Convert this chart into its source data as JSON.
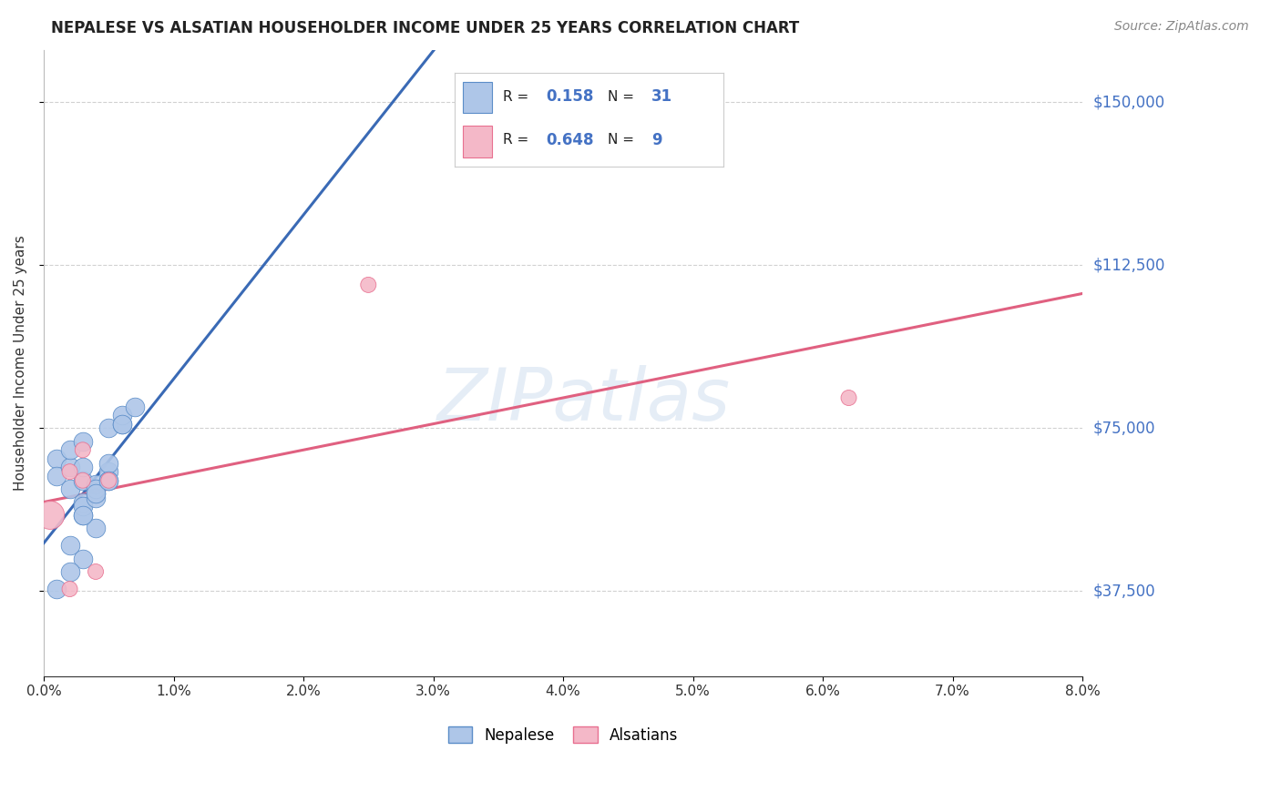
{
  "title": "NEPALESE VS ALSATIAN HOUSEHOLDER INCOME UNDER 25 YEARS CORRELATION CHART",
  "source": "Source: ZipAtlas.com",
  "ylabel_label": "Householder Income Under 25 years",
  "xlim": [
    0.0,
    0.08
  ],
  "ylim": [
    18000,
    162000
  ],
  "ytick_vals": [
    37500,
    75000,
    112500,
    150000
  ],
  "ylabel_ticks": [
    "$37,500",
    "$75,000",
    "$112,500",
    "$150,000"
  ],
  "xtick_vals": [
    0.0,
    0.01,
    0.02,
    0.03,
    0.04,
    0.05,
    0.06,
    0.07,
    0.08
  ],
  "nepalese_R": 0.158,
  "nepalese_N": 31,
  "alsatian_R": 0.648,
  "alsatian_N": 9,
  "nepalese_color": "#aec6e8",
  "alsatian_color": "#f4b8c8",
  "nepalese_edge_color": "#5b8dc8",
  "alsatian_edge_color": "#e87090",
  "nepalese_line_color": "#3a6ab5",
  "alsatian_line_color": "#e06080",
  "watermark": "ZIPatlas",
  "nep_x": [
    0.001,
    0.001,
    0.001,
    0.002,
    0.002,
    0.002,
    0.002,
    0.003,
    0.003,
    0.003,
    0.003,
    0.003,
    0.003,
    0.004,
    0.004,
    0.004,
    0.004,
    0.005,
    0.005,
    0.005,
    0.006,
    0.006,
    0.007,
    0.003,
    0.004,
    0.005,
    0.002,
    0.003,
    0.004,
    0.005,
    0.006
  ],
  "nep_y": [
    68000,
    64000,
    38000,
    61000,
    66000,
    70000,
    48000,
    72000,
    63000,
    66000,
    58000,
    55000,
    57000,
    60000,
    62000,
    59000,
    52000,
    75000,
    65000,
    63000,
    76000,
    78000,
    80000,
    45000,
    61000,
    67000,
    42000,
    55000,
    60000,
    63000,
    76000
  ],
  "als_x": [
    0.0005,
    0.002,
    0.003,
    0.003,
    0.005,
    0.025,
    0.062,
    0.004,
    0.002
  ],
  "als_y": [
    55000,
    38000,
    70000,
    63000,
    63000,
    108000,
    82000,
    42000,
    65000
  ],
  "als_sizes": [
    500,
    150,
    150,
    150,
    150,
    150,
    150,
    150,
    150
  ],
  "nep_line_solid_end": 0.032,
  "nep_line_x0": 0.0,
  "nep_line_x1": 0.08,
  "als_line_x0": 0.0,
  "als_line_x1": 0.08
}
